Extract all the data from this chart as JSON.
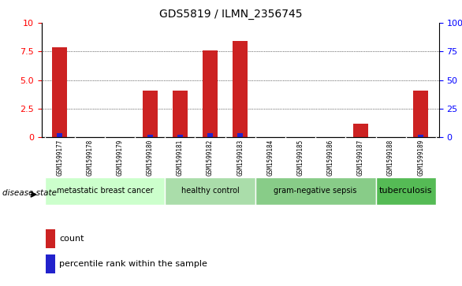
{
  "title": "GDS5819 / ILMN_2356745",
  "samples": [
    "GSM1599177",
    "GSM1599178",
    "GSM1599179",
    "GSM1599180",
    "GSM1599181",
    "GSM1599182",
    "GSM1599183",
    "GSM1599184",
    "GSM1599185",
    "GSM1599186",
    "GSM1599187",
    "GSM1599188",
    "GSM1599189"
  ],
  "count_values": [
    7.9,
    0,
    0,
    4.1,
    4.1,
    7.6,
    8.4,
    0,
    0,
    0,
    1.2,
    0,
    4.1
  ],
  "percentile_values": [
    3.6,
    0,
    0,
    2.5,
    2.5,
    3.3,
    3.8,
    0,
    0,
    0,
    0,
    0,
    2.5
  ],
  "ylim_left": [
    0,
    10
  ],
  "ylim_right": [
    0,
    100
  ],
  "yticks_left": [
    0,
    2.5,
    5.0,
    7.5,
    10
  ],
  "yticks_right": [
    0,
    25,
    50,
    75,
    100
  ],
  "groups": [
    {
      "label": "metastatic breast cancer",
      "indices": [
        0,
        1,
        2,
        3
      ],
      "color": "#ccffcc"
    },
    {
      "label": "healthy control",
      "indices": [
        4,
        5,
        6
      ],
      "color": "#aaddaa"
    },
    {
      "label": "gram-negative sepsis",
      "indices": [
        7,
        8,
        9,
        10
      ],
      "color": "#88cc88"
    },
    {
      "label": "tuberculosis",
      "indices": [
        11,
        12
      ],
      "color": "#55bb55"
    }
  ],
  "bar_color": "#cc2222",
  "percentile_color": "#2222cc",
  "bar_width": 0.5,
  "grid_color": "black",
  "background_plot": "white",
  "background_samples": "#dddddd",
  "legend_count_label": "count",
  "legend_percentile_label": "percentile rank within the sample",
  "disease_state_label": "disease state"
}
